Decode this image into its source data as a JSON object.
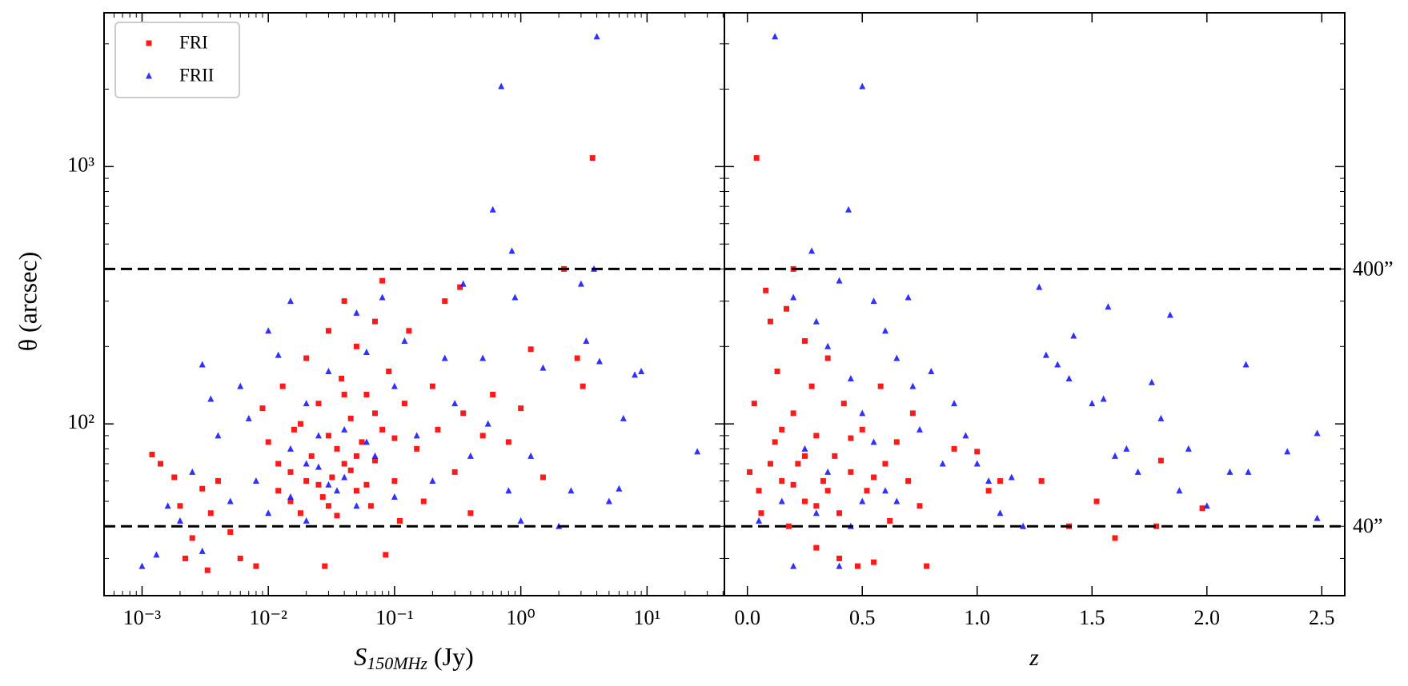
{
  "chart_data": [
    {
      "type": "scatter",
      "xlabel": {
        "symbol": "S",
        "subscript": "150MHz",
        "unit": "(Jy)"
      },
      "ylabel": "θ (arcsec)",
      "xscale": "log",
      "yscale": "log",
      "xlim": [
        0.0005,
        41
      ],
      "ylim": [
        21.5,
        3960
      ],
      "xticks": [
        {
          "value": 0.001,
          "label": "10⁻³"
        },
        {
          "value": 0.01,
          "label": "10⁻²"
        },
        {
          "value": 0.1,
          "label": "10⁻¹"
        },
        {
          "value": 1,
          "label": "10⁰"
        },
        {
          "value": 10,
          "label": "10¹"
        }
      ],
      "yticks": [
        {
          "value": 100,
          "label": "10²"
        },
        {
          "value": 1000,
          "label": "10³"
        }
      ],
      "hlines": [
        400,
        40
      ],
      "legend": "upper left",
      "series": [
        {
          "name": "FRI",
          "color": "#ff0000",
          "marker": "square",
          "x": [
            0.0012,
            0.0014,
            0.0018,
            0.002,
            0.0022,
            0.0025,
            0.003,
            0.0033,
            0.0035,
            0.004,
            0.005,
            0.006,
            0.008,
            0.009,
            0.01,
            0.012,
            0.013,
            0.015,
            0.016,
            0.018,
            0.02,
            0.02,
            0.022,
            0.025,
            0.027,
            0.028,
            0.03,
            0.03,
            0.032,
            0.035,
            0.038,
            0.04,
            0.04,
            0.045,
            0.05,
            0.05,
            0.055,
            0.06,
            0.065,
            0.07,
            0.07,
            0.08,
            0.08,
            0.085,
            0.09,
            0.1,
            0.11,
            0.12,
            0.13,
            0.15,
            0.17,
            0.2,
            0.22,
            0.25,
            0.3,
            0.33,
            0.35,
            0.4,
            0.5,
            0.6,
            0.8,
            1.0,
            1.2,
            1.5,
            2.2,
            2.8,
            3.1,
            3.7,
            0.015,
            0.025,
            0.035,
            0.045,
            0.06,
            0.012,
            0.018,
            0.03,
            0.05,
            0.07,
            0.1,
            0.04
          ],
          "values": [
            76,
            70,
            62,
            48,
            30,
            36,
            56,
            27,
            45,
            60,
            38,
            30,
            28,
            115,
            85,
            70,
            140,
            50,
            95,
            45,
            180,
            60,
            75,
            120,
            52,
            28,
            230,
            90,
            62,
            44,
            150,
            300,
            70,
            105,
            55,
            200,
            85,
            130,
            48,
            250,
            72,
            360,
            95,
            31,
            160,
            60,
            42,
            120,
            230,
            80,
            50,
            140,
            95,
            300,
            65,
            340,
            110,
            45,
            90,
            130,
            85,
            115,
            195,
            62,
            400,
            180,
            140,
            1080,
            65,
            58,
            80,
            66,
            58,
            55,
            100,
            48,
            75,
            110,
            88,
            130
          ]
        },
        {
          "name": "FRII",
          "color": "#1a1aff",
          "marker": "triangle",
          "x": [
            0.001,
            0.0013,
            0.0016,
            0.002,
            0.0025,
            0.003,
            0.003,
            0.0035,
            0.004,
            0.005,
            0.006,
            0.007,
            0.008,
            0.01,
            0.01,
            0.012,
            0.015,
            0.015,
            0.02,
            0.02,
            0.025,
            0.03,
            0.035,
            0.04,
            0.05,
            0.05,
            0.06,
            0.07,
            0.08,
            0.1,
            0.1,
            0.12,
            0.15,
            0.2,
            0.25,
            0.3,
            0.35,
            0.4,
            0.5,
            0.55,
            0.6,
            0.7,
            0.8,
            0.85,
            0.9,
            1.0,
            1.2,
            1.5,
            2.0,
            2.5,
            3.0,
            3.3,
            3.8,
            4.0,
            4.2,
            5.0,
            6.0,
            6.5,
            8.0,
            9.0,
            25,
            0.02,
            0.03,
            0.04,
            0.06,
            0.015,
            0.025
          ],
          "values": [
            28,
            31,
            48,
            42,
            65,
            170,
            32,
            125,
            90,
            50,
            140,
            105,
            60,
            230,
            45,
            185,
            300,
            80,
            42,
            120,
            68,
            160,
            55,
            95,
            270,
            48,
            190,
            75,
            310,
            140,
            52,
            210,
            90,
            60,
            180,
            120,
            350,
            75,
            180,
            100,
            680,
            2050,
            55,
            470,
            310,
            42,
            75,
            165,
            40,
            55,
            350,
            210,
            400,
            3200,
            175,
            50,
            56,
            105,
            155,
            160,
            78,
            70,
            58,
            62,
            85,
            52,
            90
          ]
        }
      ]
    },
    {
      "type": "scatter",
      "xlabel": "z",
      "xscale": "linear",
      "yscale": "log",
      "xlim": [
        -0.1,
        2.6
      ],
      "ylim": [
        21.5,
        3960
      ],
      "xticks": [
        {
          "value": 0,
          "label": "0.0"
        },
        0.5,
        {
          "value": 1,
          "label": "1.0"
        },
        1.5,
        {
          "value": 2,
          "label": "2.0"
        },
        2.5
      ],
      "yticks": [
        100,
        1000
      ],
      "hlines": [
        {
          "value": 400,
          "label": "400”"
        },
        {
          "value": 40,
          "label": "40”"
        }
      ],
      "series": [
        {
          "name": "FRI",
          "color": "#ff0000",
          "marker": "square",
          "x": [
            0.04,
            0.03,
            0.05,
            0.06,
            0.08,
            0.1,
            0.12,
            0.13,
            0.15,
            0.17,
            0.18,
            0.2,
            0.2,
            0.22,
            0.25,
            0.25,
            0.28,
            0.3,
            0.3,
            0.33,
            0.35,
            0.38,
            0.4,
            0.4,
            0.42,
            0.45,
            0.48,
            0.5,
            0.52,
            0.55,
            0.58,
            0.6,
            0.62,
            0.65,
            0.7,
            0.72,
            0.75,
            0.78,
            0.9,
            1.0,
            1.05,
            1.1,
            1.28,
            1.4,
            1.52,
            1.6,
            1.78,
            1.8,
            1.98,
            0.01,
            0.15,
            0.25,
            0.35,
            0.45,
            0.55,
            0.3,
            0.2,
            0.1
          ],
          "values": [
            1080,
            120,
            55,
            45,
            330,
            250,
            85,
            160,
            60,
            280,
            40,
            400,
            110,
            70,
            210,
            50,
            140,
            33,
            90,
            60,
            180,
            75,
            45,
            30,
            120,
            65,
            28,
            95,
            55,
            29,
            140,
            70,
            42,
            85,
            60,
            110,
            48,
            28,
            80,
            78,
            55,
            60,
            60,
            40,
            50,
            36,
            40,
            72,
            47,
            65,
            95,
            75,
            55,
            88,
            62,
            48,
            58,
            70
          ]
        },
        {
          "name": "FRII",
          "color": "#1a1aff",
          "marker": "triangle",
          "x": [
            0.12,
            0.5,
            0.44,
            0.28,
            0.4,
            0.2,
            0.3,
            0.35,
            0.45,
            0.5,
            0.55,
            0.6,
            0.65,
            0.7,
            0.72,
            0.75,
            0.8,
            0.85,
            0.9,
            0.95,
            1.0,
            1.05,
            1.1,
            1.15,
            1.2,
            1.27,
            1.3,
            1.35,
            1.4,
            1.42,
            1.5,
            1.55,
            1.57,
            1.6,
            1.65,
            1.7,
            1.76,
            1.8,
            1.84,
            1.88,
            1.92,
            2.0,
            2.1,
            2.17,
            2.18,
            2.35,
            2.48,
            2.48,
            0.4,
            0.2,
            0.3,
            0.5,
            0.6,
            0.45,
            0.35,
            0.25,
            0.55,
            0.65,
            0.15,
            0.05
          ],
          "values": [
            3200,
            2050,
            680,
            470,
            360,
            310,
            250,
            200,
            150,
            110,
            300,
            230,
            180,
            310,
            140,
            95,
            160,
            70,
            120,
            90,
            70,
            60,
            45,
            62,
            40,
            340,
            185,
            170,
            150,
            220,
            120,
            125,
            285,
            75,
            80,
            65,
            145,
            105,
            265,
            55,
            80,
            48,
            65,
            170,
            65,
            78,
            92,
            43,
            28,
            28,
            45,
            50,
            55,
            40,
            65,
            80,
            85,
            50,
            50,
            42
          ]
        }
      ]
    }
  ]
}
